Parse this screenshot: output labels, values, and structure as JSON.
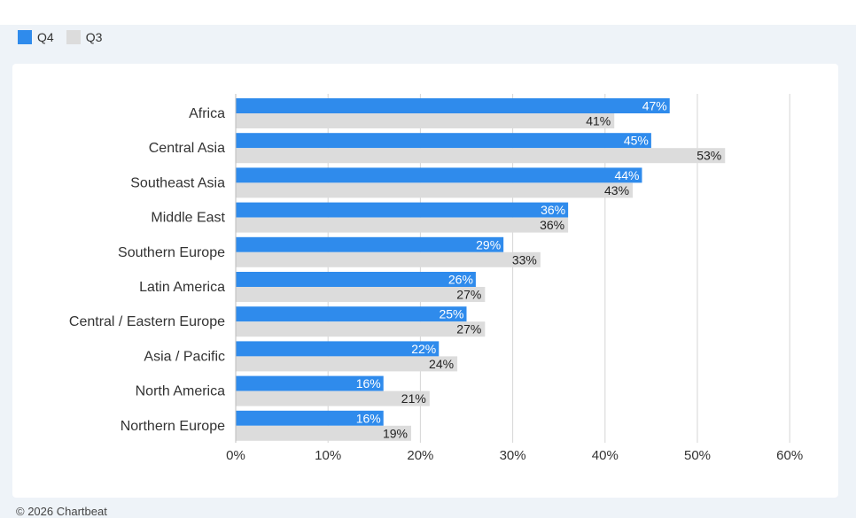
{
  "legend": {
    "items": [
      {
        "label": "Q4",
        "color": "#2f8bec"
      },
      {
        "label": "Q3",
        "color": "#dcdcdc"
      }
    ]
  },
  "chart_data": {
    "type": "bar",
    "orientation": "horizontal",
    "categories": [
      "Africa",
      "Central Asia",
      "Southeast Asia",
      "Middle East",
      "Southern Europe",
      "Latin America",
      "Central / Eastern Europe",
      "Asia / Pacific",
      "North America",
      "Northern Europe"
    ],
    "series": [
      {
        "name": "Q4",
        "color": "#2f8bec",
        "values": [
          47,
          45,
          44,
          36,
          29,
          26,
          25,
          22,
          16,
          16
        ]
      },
      {
        "name": "Q3",
        "color": "#dcdcdc",
        "values": [
          41,
          53,
          43,
          36,
          33,
          27,
          27,
          24,
          21,
          19
        ]
      }
    ],
    "xlim": [
      0,
      60
    ],
    "xticks": [
      0,
      10,
      20,
      30,
      40,
      50,
      60
    ],
    "tick_suffix": "%",
    "grid": true,
    "legend_position": "top-left"
  },
  "footer": {
    "text": "© 2026 Chartbeat"
  }
}
